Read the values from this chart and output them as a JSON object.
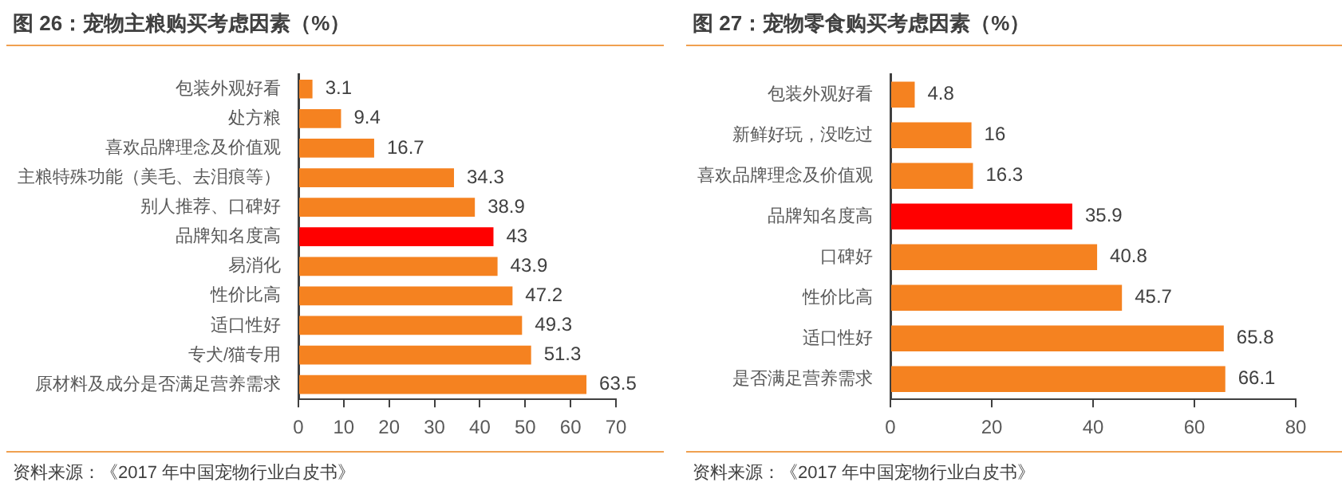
{
  "chart_data": [
    {
      "type": "bar",
      "orientation": "horizontal",
      "title": "图 26：宠物主粮购买考虑因素（%）",
      "categories": [
        "包装外观好看",
        "处方粮",
        "喜欢品牌理念及价值观",
        "主粮特殊功能（美毛、去泪痕等）",
        "别人推荐、口碑好",
        "品牌知名度高",
        "易消化",
        "性价比高",
        "适口性好",
        "专犬/猫专用",
        "原材料及成分是否满足营养需求"
      ],
      "values": [
        3.1,
        9.4,
        16.7,
        34.3,
        38.9,
        43,
        43.9,
        47.2,
        49.3,
        51.3,
        63.5
      ],
      "colors": [
        "#f58220",
        "#f58220",
        "#f58220",
        "#f58220",
        "#f58220",
        "#ff0000",
        "#f58220",
        "#f58220",
        "#f58220",
        "#f58220",
        "#f58220"
      ],
      "xlim": [
        0,
        70
      ],
      "xticks": [
        0,
        10,
        20,
        30,
        40,
        50,
        60,
        70
      ],
      "data_labels": true,
      "grid": false,
      "legend": false,
      "annotations": [
        "资料来源：《2017 年中国宠物行业白皮书》"
      ]
    },
    {
      "type": "bar",
      "orientation": "horizontal",
      "title": "图 27：宠物零食购买考虑因素（%）",
      "categories": [
        "包装外观好看",
        "新鲜好玩，没吃过",
        "喜欢品牌理念及价值观",
        "品牌知名度高",
        "口碑好",
        "性价比高",
        "适口性好",
        "是否满足营养需求"
      ],
      "values": [
        4.8,
        16,
        16.3,
        35.9,
        40.8,
        45.7,
        65.8,
        66.1
      ],
      "colors": [
        "#f58220",
        "#f58220",
        "#f58220",
        "#ff0000",
        "#f58220",
        "#f58220",
        "#f58220",
        "#f58220"
      ],
      "xlim": [
        0,
        80
      ],
      "xticks": [
        0,
        20,
        40,
        60,
        80
      ],
      "data_labels": true,
      "grid": false,
      "legend": false,
      "annotations": [
        "资料来源：《2017 年中国宠物行业白皮书》"
      ]
    }
  ]
}
